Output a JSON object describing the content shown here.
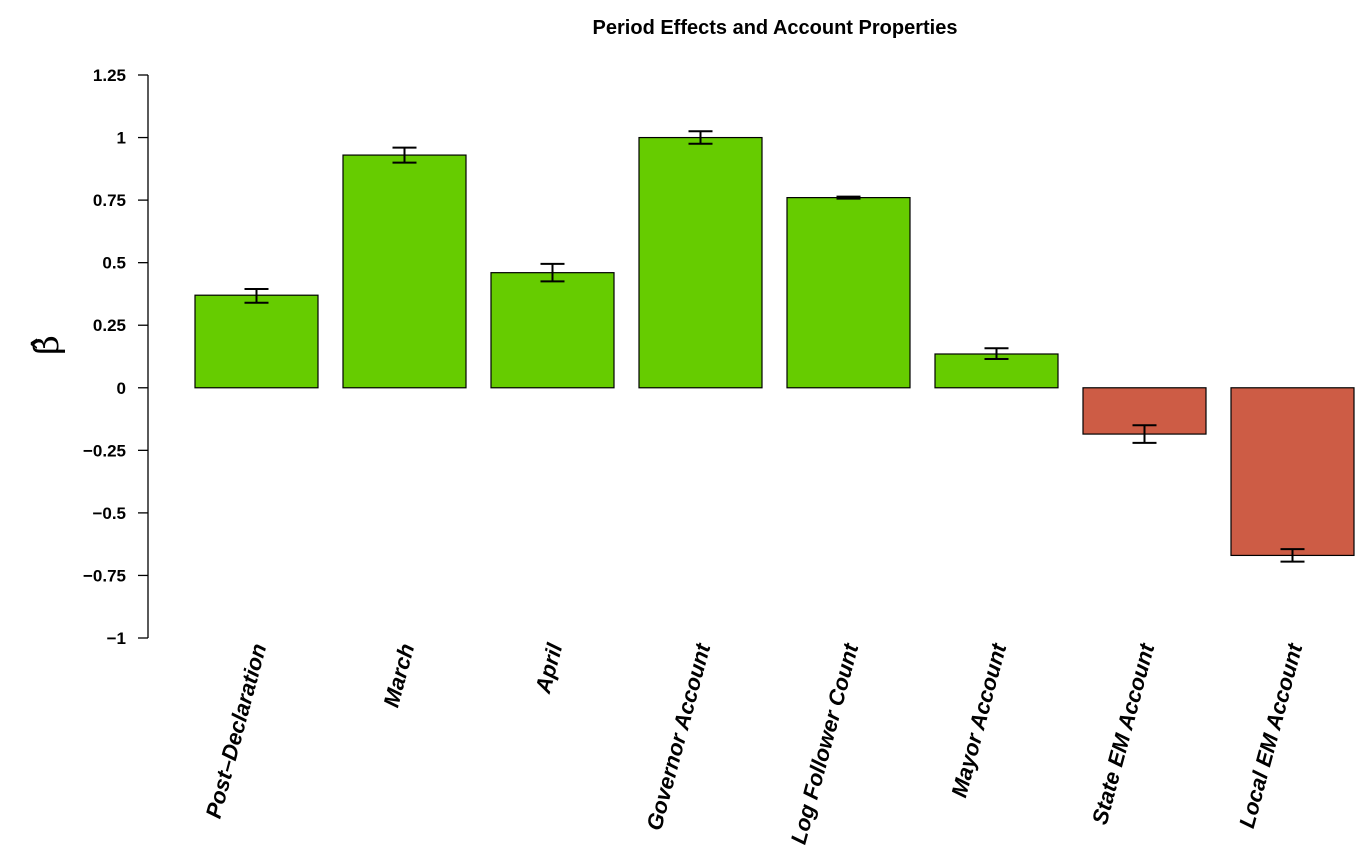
{
  "chart_data": {
    "type": "bar",
    "title": "Period Effects and Account Properties",
    "ylabel": "β̂",
    "xlabel": "",
    "ylim": [
      -1,
      1.25
    ],
    "yticks": [
      1.25,
      1,
      0.75,
      0.5,
      0.25,
      0,
      -0.25,
      -0.5,
      -0.75,
      -1
    ],
    "ytick_labels": [
      "1.25",
      "1",
      "0.75",
      "0.5",
      "0.25",
      "0",
      "−0.25",
      "−0.5",
      "−0.75",
      "−1"
    ],
    "categories": [
      "Post–Declaration",
      "March",
      "April",
      "Governor Account",
      "Log Follower Count",
      "Mayor Account",
      "State EM Account",
      "Local EM Account"
    ],
    "values": [
      0.37,
      0.93,
      0.46,
      1.0,
      0.76,
      0.135,
      -0.185,
      -0.67
    ],
    "error_low": [
      0.34,
      0.9,
      0.425,
      0.975,
      0.756,
      0.115,
      -0.22,
      -0.695
    ],
    "error_high": [
      0.395,
      0.96,
      0.495,
      1.025,
      0.764,
      0.158,
      -0.15,
      -0.645
    ],
    "colors": {
      "positive": "#66cc00",
      "negative": "#cd5c45"
    },
    "grid": false,
    "legend": "none"
  }
}
